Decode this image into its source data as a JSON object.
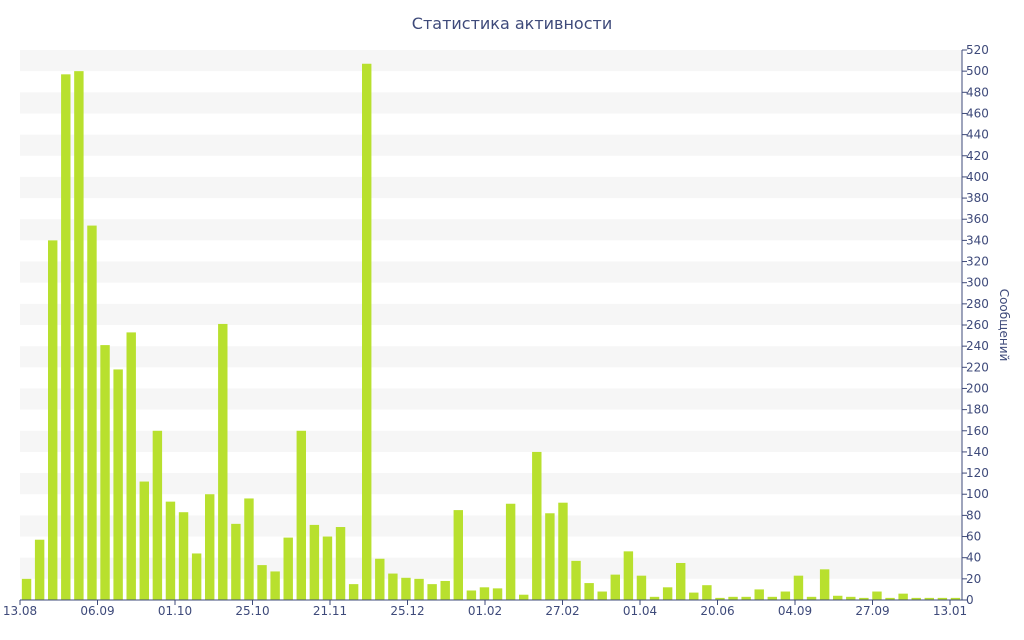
{
  "chart_data": {
    "type": "bar",
    "title": "Статистика активности",
    "ylabel": "Сообщений",
    "xlabel": "",
    "ylim": [
      0,
      520
    ],
    "ytick_step": 20,
    "x_tick_labels": [
      "13.08",
      "06.09",
      "01.10",
      "25.10",
      "21.11",
      "25.12",
      "01.02",
      "27.02",
      "01.04",
      "20.06",
      "04.09",
      "27.09",
      "13.01"
    ],
    "values": [
      20,
      57,
      340,
      497,
      500,
      354,
      241,
      218,
      253,
      112,
      160,
      93,
      83,
      44,
      100,
      261,
      72,
      96,
      33,
      27,
      59,
      160,
      71,
      60,
      69,
      15,
      507,
      39,
      25,
      21,
      20,
      15,
      18,
      85,
      9,
      12,
      11,
      91,
      5,
      140,
      82,
      92,
      37,
      16,
      8,
      24,
      46,
      23,
      3,
      12,
      35,
      7,
      14,
      2,
      3,
      3,
      10,
      3,
      8,
      23,
      3,
      29,
      4,
      3,
      2,
      8,
      2,
      6,
      2,
      2,
      2,
      2
    ],
    "color": "#b8e02e",
    "grid": "horizontal alternating bands",
    "y_axis_side": "right"
  }
}
